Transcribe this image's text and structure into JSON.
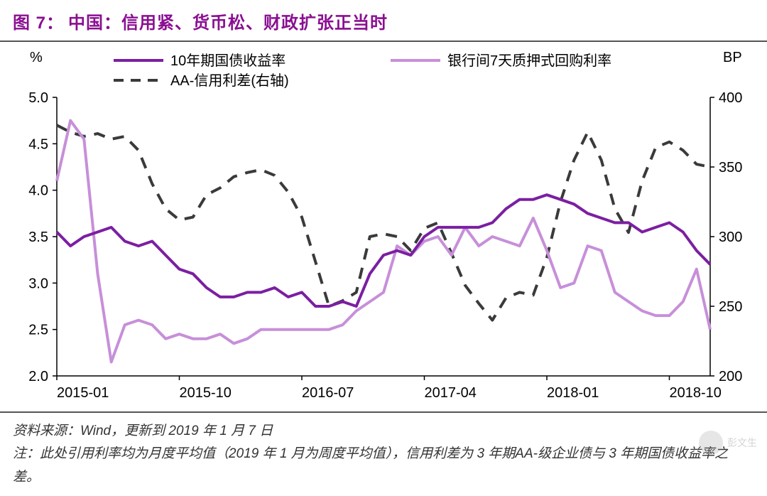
{
  "title": {
    "prefix": "图 7：",
    "text": "中国：信用紧、货币松、财政扩张正当时",
    "color": "#8a0f91",
    "fontsize": 24
  },
  "chart": {
    "type": "line",
    "background_color": "#ffffff",
    "plot_border_color": "#000000",
    "left_axis": {
      "label": "%",
      "label_fontsize": 20,
      "min": 2.0,
      "max": 5.0,
      "ticks": [
        2.0,
        2.5,
        3.0,
        3.5,
        4.0,
        4.5,
        5.0
      ],
      "tick_fontsize": 20,
      "tick_color": "#000000"
    },
    "right_axis": {
      "label": "BP",
      "label_fontsize": 20,
      "min": 200,
      "max": 400,
      "ticks": [
        200,
        250,
        300,
        350,
        400
      ],
      "tick_fontsize": 20,
      "tick_color": "#000000"
    },
    "x_axis": {
      "ticks": [
        "2015-01",
        "2015-10",
        "2016-07",
        "2017-04",
        "2018-01",
        "2018-10"
      ],
      "tick_fontsize": 20,
      "tick_color": "#000000",
      "n_points": 49
    },
    "legend": {
      "fontsize": 20,
      "items": [
        {
          "label": "10年期国债收益率",
          "color": "#7b1fa2",
          "dash": "solid",
          "width": 4,
          "axis": "left"
        },
        {
          "label": "银行间7天质押式回购利率",
          "color": "#c78fd9",
          "dash": "solid",
          "width": 4,
          "axis": "left"
        },
        {
          "label": "AA-信用利差(右轴)",
          "color": "#3a3a3a",
          "dash": "dash",
          "width": 4,
          "axis": "right"
        }
      ]
    },
    "series": {
      "bond10y": {
        "color": "#7b1fa2",
        "width": 4,
        "dash": "solid",
        "axis": "left",
        "values": [
          3.55,
          3.4,
          3.5,
          3.55,
          3.6,
          3.45,
          3.4,
          3.45,
          3.3,
          3.15,
          3.1,
          2.95,
          2.85,
          2.85,
          2.9,
          2.9,
          2.95,
          2.85,
          2.9,
          2.75,
          2.75,
          2.8,
          2.75,
          3.1,
          3.3,
          3.35,
          3.3,
          3.5,
          3.6,
          3.6,
          3.6,
          3.6,
          3.65,
          3.8,
          3.9,
          3.9,
          3.95,
          3.9,
          3.85,
          3.75,
          3.7,
          3.65,
          3.65,
          3.55,
          3.6,
          3.65,
          3.55,
          3.35,
          3.2
        ]
      },
      "repo7d": {
        "color": "#c78fd9",
        "width": 4,
        "dash": "solid",
        "axis": "left",
        "values": [
          4.1,
          4.75,
          4.55,
          3.1,
          2.15,
          2.55,
          2.6,
          2.55,
          2.4,
          2.45,
          2.4,
          2.4,
          2.45,
          2.35,
          2.4,
          2.5,
          2.5,
          2.5,
          2.5,
          2.5,
          2.5,
          2.55,
          2.7,
          2.8,
          2.9,
          3.4,
          3.3,
          3.45,
          3.5,
          3.3,
          3.6,
          3.4,
          3.5,
          3.45,
          3.4,
          3.7,
          3.35,
          2.95,
          3.0,
          3.4,
          3.35,
          2.9,
          2.8,
          2.7,
          2.65,
          2.65,
          2.8,
          3.15,
          2.5
        ]
      },
      "credit_spread": {
        "color": "#3a3a3a",
        "width": 4,
        "dash": "dash",
        "axis": "right",
        "values": [
          380,
          375,
          372,
          374,
          370,
          372,
          362,
          338,
          320,
          312,
          314,
          330,
          335,
          343,
          346,
          348,
          344,
          332,
          314,
          282,
          250,
          254,
          260,
          300,
          302,
          300,
          290,
          306,
          310,
          288,
          265,
          252,
          240,
          256,
          260,
          258,
          285,
          325,
          355,
          375,
          355,
          320,
          303,
          340,
          364,
          368,
          362,
          352,
          350
        ]
      }
    }
  },
  "footer": {
    "source": "资料来源：Wind，更新到 2019 年 1 月 7 日",
    "note": "注：此处引用利率均为月度平均值（2019 年 1 月为周度平均值），信用利差为 3 年期AA-级企业债与 3 年期国债收益率之差。",
    "fontsize": 19,
    "color": "#333333"
  },
  "watermark": {
    "text": "彭文生"
  }
}
